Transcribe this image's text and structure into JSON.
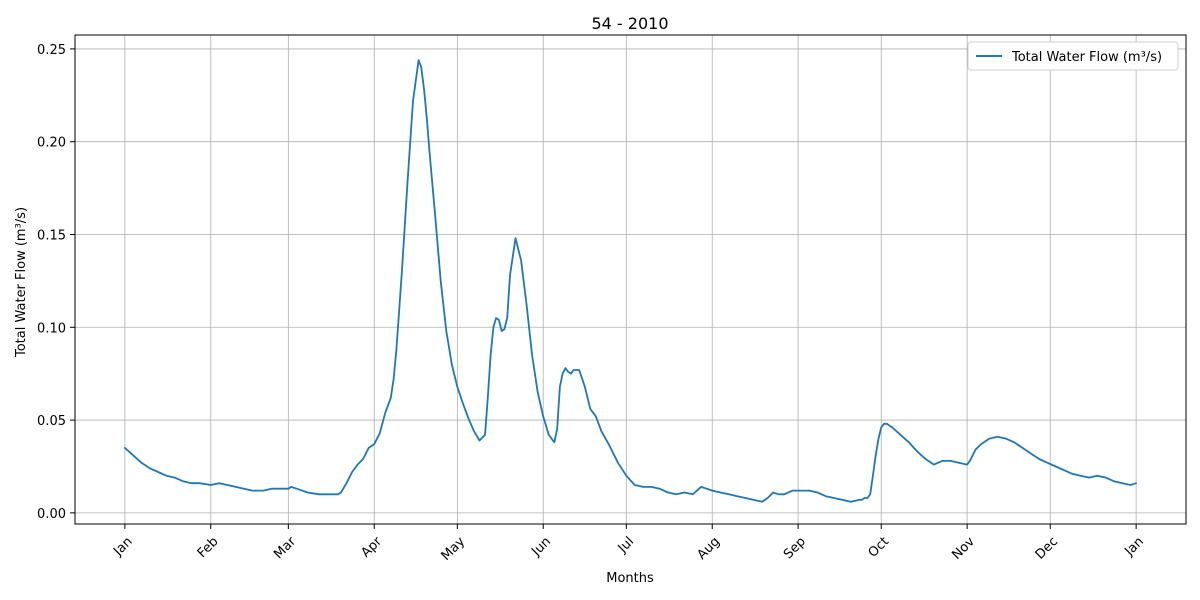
{
  "chart_data": {
    "type": "line",
    "title": "54 - 2010",
    "xlabel": "Months",
    "ylabel": "Total Water Flow (m³/s)",
    "x_tick_labels": [
      "Jan",
      "Feb",
      "Mar",
      "Apr",
      "May",
      "Jun",
      "Jul",
      "Aug",
      "Sep",
      "Oct",
      "Nov",
      "Dec",
      "Jan"
    ],
    "x_tick_days": [
      0,
      31,
      59,
      90,
      120,
      151,
      181,
      212,
      243,
      273,
      304,
      334,
      365
    ],
    "y_ticks": [
      "0.00",
      "0.05",
      "0.10",
      "0.15",
      "0.20",
      "0.25"
    ],
    "y_tick_values": [
      0,
      0.05,
      0.1,
      0.15,
      0.2,
      0.25
    ],
    "xlim": [
      -18,
      383
    ],
    "ylim": [
      -0.006,
      0.2575
    ],
    "grid": true,
    "legend_position": "top-right",
    "series": [
      {
        "name": "Total Water Flow (m³/s)",
        "color": "#1f77b4",
        "x": [
          0,
          3,
          6,
          9,
          12,
          15,
          18,
          21,
          24,
          27,
          31,
          34,
          37,
          40,
          43,
          46,
          50,
          53,
          56,
          59,
          60,
          62,
          66,
          70,
          74,
          77,
          78,
          80,
          82,
          84,
          86,
          88,
          90,
          92,
          94,
          96,
          97,
          98,
          100,
          102,
          104,
          106,
          107,
          108,
          109,
          110,
          112,
          114,
          116,
          118,
          120,
          122,
          124,
          126,
          128,
          130,
          131,
          132,
          133,
          134,
          135,
          136,
          137,
          138,
          139,
          141,
          143,
          145,
          147,
          149,
          151,
          153,
          155,
          156,
          157,
          158,
          159,
          160,
          161,
          162,
          164,
          166,
          168,
          170,
          172,
          175,
          178,
          181,
          184,
          187,
          190,
          193,
          196,
          199,
          202,
          205,
          208,
          210,
          212,
          215,
          218,
          221,
          224,
          227,
          230,
          232,
          234,
          236,
          238,
          241,
          244,
          247,
          250,
          253,
          256,
          259,
          262,
          265,
          266,
          267,
          268,
          269,
          270,
          271,
          272,
          273,
          274,
          275,
          277,
          280,
          283,
          286,
          289,
          292,
          295,
          298,
          301,
          304,
          305,
          307,
          309,
          312,
          315,
          318,
          321,
          324,
          327,
          330,
          333,
          336,
          339,
          342,
          345,
          348,
          351,
          354,
          357,
          360,
          363,
          365
        ],
        "y": [
          0.035,
          0.031,
          0.027,
          0.024,
          0.022,
          0.02,
          0.019,
          0.017,
          0.016,
          0.016,
          0.015,
          0.016,
          0.015,
          0.014,
          0.013,
          0.012,
          0.012,
          0.013,
          0.013,
          0.013,
          0.014,
          0.013,
          0.011,
          0.01,
          0.01,
          0.01,
          0.011,
          0.016,
          0.022,
          0.026,
          0.029,
          0.035,
          0.037,
          0.043,
          0.054,
          0.062,
          0.072,
          0.088,
          0.13,
          0.178,
          0.222,
          0.244,
          0.24,
          0.228,
          0.212,
          0.194,
          0.16,
          0.125,
          0.098,
          0.08,
          0.068,
          0.059,
          0.051,
          0.044,
          0.039,
          0.042,
          0.062,
          0.085,
          0.1,
          0.105,
          0.104,
          0.098,
          0.099,
          0.105,
          0.128,
          0.148,
          0.136,
          0.112,
          0.085,
          0.065,
          0.052,
          0.042,
          0.038,
          0.045,
          0.068,
          0.075,
          0.078,
          0.076,
          0.075,
          0.077,
          0.077,
          0.068,
          0.056,
          0.052,
          0.044,
          0.036,
          0.027,
          0.02,
          0.015,
          0.014,
          0.014,
          0.013,
          0.011,
          0.01,
          0.011,
          0.01,
          0.014,
          0.013,
          0.012,
          0.011,
          0.01,
          0.009,
          0.008,
          0.007,
          0.006,
          0.008,
          0.011,
          0.01,
          0.01,
          0.012,
          0.012,
          0.012,
          0.011,
          0.009,
          0.008,
          0.007,
          0.006,
          0.007,
          0.007,
          0.008,
          0.008,
          0.01,
          0.02,
          0.031,
          0.04,
          0.046,
          0.048,
          0.048,
          0.046,
          0.042,
          0.038,
          0.033,
          0.029,
          0.026,
          0.028,
          0.028,
          0.027,
          0.026,
          0.028,
          0.034,
          0.037,
          0.04,
          0.041,
          0.04,
          0.038,
          0.035,
          0.032,
          0.029,
          0.027,
          0.025,
          0.023,
          0.021,
          0.02,
          0.019,
          0.02,
          0.019,
          0.017,
          0.016,
          0.015,
          0.016
        ]
      }
    ]
  }
}
